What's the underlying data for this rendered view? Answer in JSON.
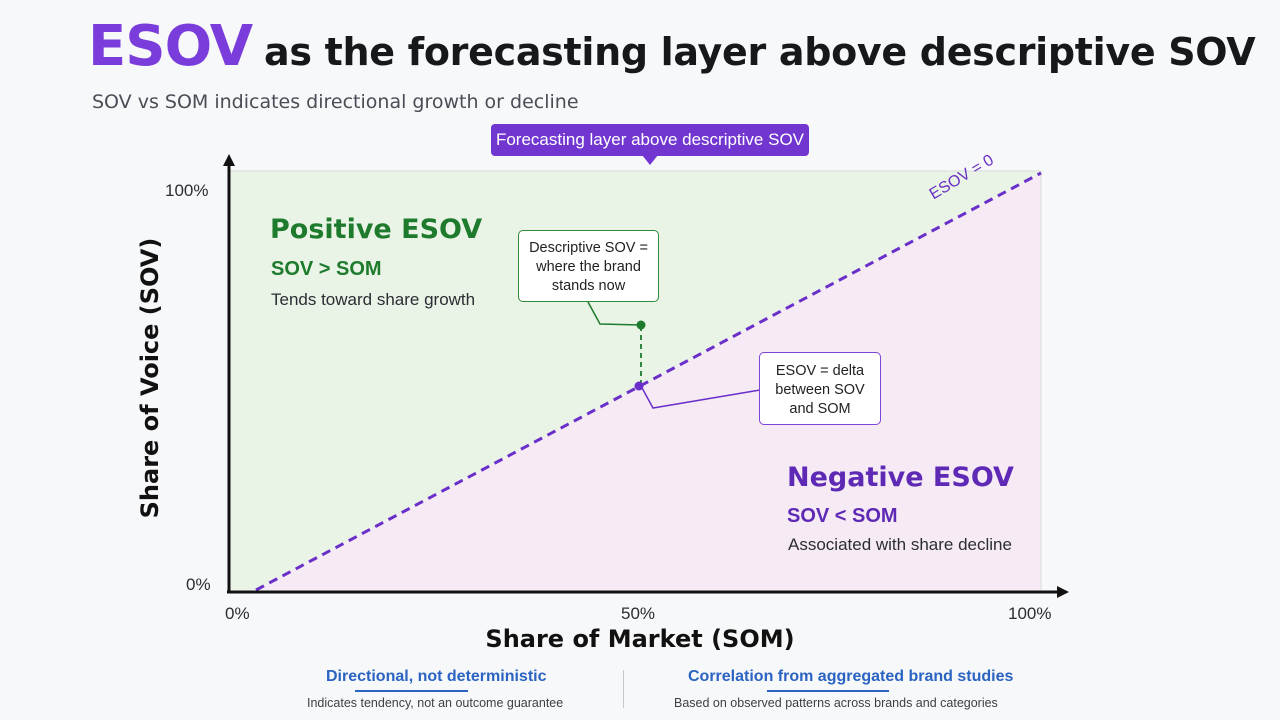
{
  "title": {
    "accent": "ESOV",
    "rest": "as the forecasting layer above descriptive SOV"
  },
  "subtitle": "SOV vs SOM indicates directional growth or decline",
  "top_callout": "Forecasting layer above descriptive SOV",
  "chart": {
    "y_axis_label": "Share of Voice (SOV)",
    "x_axis_label": "Share of Market (SOM)",
    "y_ticks": {
      "top": "100%",
      "bottom": "0%"
    },
    "x_ticks": {
      "left": "0%",
      "middle": "50%",
      "right": "100%"
    },
    "diagonal_label": "ESOV = 0",
    "colors": {
      "positive_fill": "#e9f4e7",
      "negative_fill": "#f6ebf5",
      "diagonal": "#6b2fc9",
      "descriptive_point": "#1e7a2c",
      "esov_point": "#6b2fc9",
      "axis": "#111111"
    }
  },
  "regions": {
    "positive": {
      "title": "Positive ESOV",
      "condition": "SOV > SOM",
      "description": "Tends toward share growth"
    },
    "negative": {
      "title": "Negative ESOV",
      "condition": "SOV < SOM",
      "description": "Associated with share decline"
    }
  },
  "callouts": {
    "descriptive": [
      "Descriptive SOV =",
      "where the brand",
      "stands now"
    ],
    "esov": [
      "ESOV = delta",
      "between SOV",
      "and SOM"
    ]
  },
  "footer": {
    "left": {
      "heading": "Directional, not deterministic",
      "text": "Indicates tendency, not an outcome guarantee"
    },
    "right": {
      "heading": "Correlation from aggregated brand studies",
      "text": "Based on observed patterns across brands and categories"
    }
  }
}
